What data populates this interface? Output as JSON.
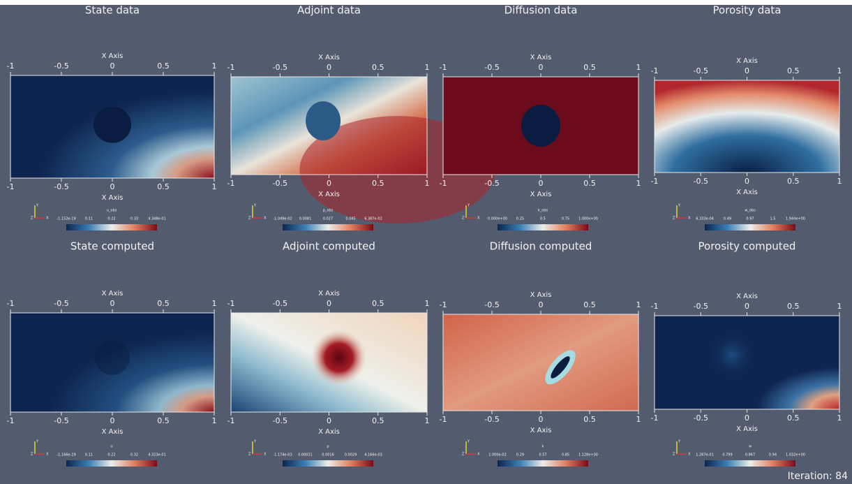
{
  "panels": [
    {
      "title": "State data",
      "x_axis_top": "X Axis",
      "x_axis_bottom": "X Axis",
      "x_ticks_top": [
        "-1",
        "-0.5",
        "0",
        "0.5",
        "1"
      ],
      "x_ticks_bottom": [
        "-1",
        "-0.5",
        "0",
        "0.5",
        "1"
      ],
      "colorbar": {
        "label": "u_obs",
        "ticks": [
          "-1.152e-19",
          "0.11",
          "0.22",
          "0.33",
          "4.348e-01"
        ]
      }
    },
    {
      "title": "Adjoint data",
      "x_axis_top": "X Axis",
      "x_axis_bottom": "X Axis",
      "x_ticks_top": [
        "-1",
        "-0.5",
        "0",
        "0.5",
        "1"
      ],
      "x_ticks_bottom": [
        "-1",
        "-0.5",
        "0",
        "0.5",
        "1"
      ],
      "colorbar": {
        "label": "p_obs",
        "ticks": [
          "-1.049e-02",
          "0.0081",
          "0.027",
          "0.045",
          "6.387e-02"
        ]
      }
    },
    {
      "title": "Diffusion data",
      "x_axis_top": "X Axis",
      "x_axis_bottom": "X Axis",
      "x_ticks_top": [
        "-1",
        "-0.5",
        "0",
        "0.5",
        "1"
      ],
      "x_ticks_bottom": [
        "-1",
        "-0.5",
        "0",
        "0.5",
        "1"
      ],
      "colorbar": {
        "label": "k_obs",
        "ticks": [
          "0.000e+00",
          "0.25",
          "0.5",
          "0.75",
          "1.000e+00"
        ]
      }
    },
    {
      "title": "Porosity data",
      "x_axis_top": "X Axis",
      "x_axis_bottom": "X Axis",
      "x_ticks_top": [
        "-1",
        "-0.5",
        "0",
        "0.5",
        "1"
      ],
      "x_ticks_bottom": [
        "-1",
        "-0.5",
        "0",
        "0.5",
        "1"
      ],
      "colorbar": {
        "label": "w_obs",
        "ticks": [
          "6.333e-04",
          "0.49",
          "0.97",
          "1.5",
          "1.944e+00"
        ]
      }
    },
    {
      "title": "State computed",
      "x_axis_top": "X Axis",
      "x_axis_bottom": "X Axis",
      "x_ticks_top": [
        "-1",
        "-0.5",
        "0",
        "0.5",
        "1"
      ],
      "x_ticks_bottom": [
        "-1",
        "-0.5",
        "0",
        "0.5",
        "1"
      ],
      "colorbar": {
        "label": "u",
        "ticks": [
          "-1.166e-19",
          "0.11",
          "0.22",
          "0.32",
          "4.323e-01"
        ]
      }
    },
    {
      "title": "Adjoint computed",
      "x_axis_top": "X Axis",
      "x_axis_bottom": "X Axis",
      "x_ticks_top": [
        "-1",
        "-0.5",
        "0",
        "0.5",
        "1"
      ],
      "x_ticks_bottom": [
        "-1",
        "-0.5",
        "0",
        "0.5",
        "1"
      ],
      "colorbar": {
        "label": "p",
        "ticks": [
          "-1.174e-03",
          "0.00031",
          "0.0016",
          "0.0029",
          "4.166e-03"
        ]
      }
    },
    {
      "title": "Diffusion computed",
      "x_axis_top": "X Axis",
      "x_axis_bottom": "X Axis",
      "x_ticks_top": [
        "-1",
        "-0.5",
        "0",
        "0.5",
        "1"
      ],
      "x_ticks_bottom": [
        "-1",
        "-0.5",
        "0",
        "0.5",
        "1"
      ],
      "colorbar": {
        "label": "k",
        "ticks": [
          "1.000e-02",
          "0.29",
          "0.57",
          "0.85",
          "1.128e+00"
        ]
      }
    },
    {
      "title": "Porosity computed",
      "x_axis_top": "X Axis",
      "x_axis_bottom": "X Axis",
      "x_ticks_top": [
        "-1",
        "-0.5",
        "0",
        "0.5",
        "1"
      ],
      "x_ticks_bottom": [
        "-1",
        "-0.5",
        "0",
        "0.5",
        "1"
      ],
      "colorbar": {
        "label": "w",
        "ticks": [
          "1.287e-01",
          "0.799",
          "0.867",
          "0.94",
          "1.032e+00"
        ]
      }
    }
  ],
  "triad": {
    "x": "X",
    "y": "Y",
    "z": "Z"
  },
  "status": "Iteration: 84"
}
